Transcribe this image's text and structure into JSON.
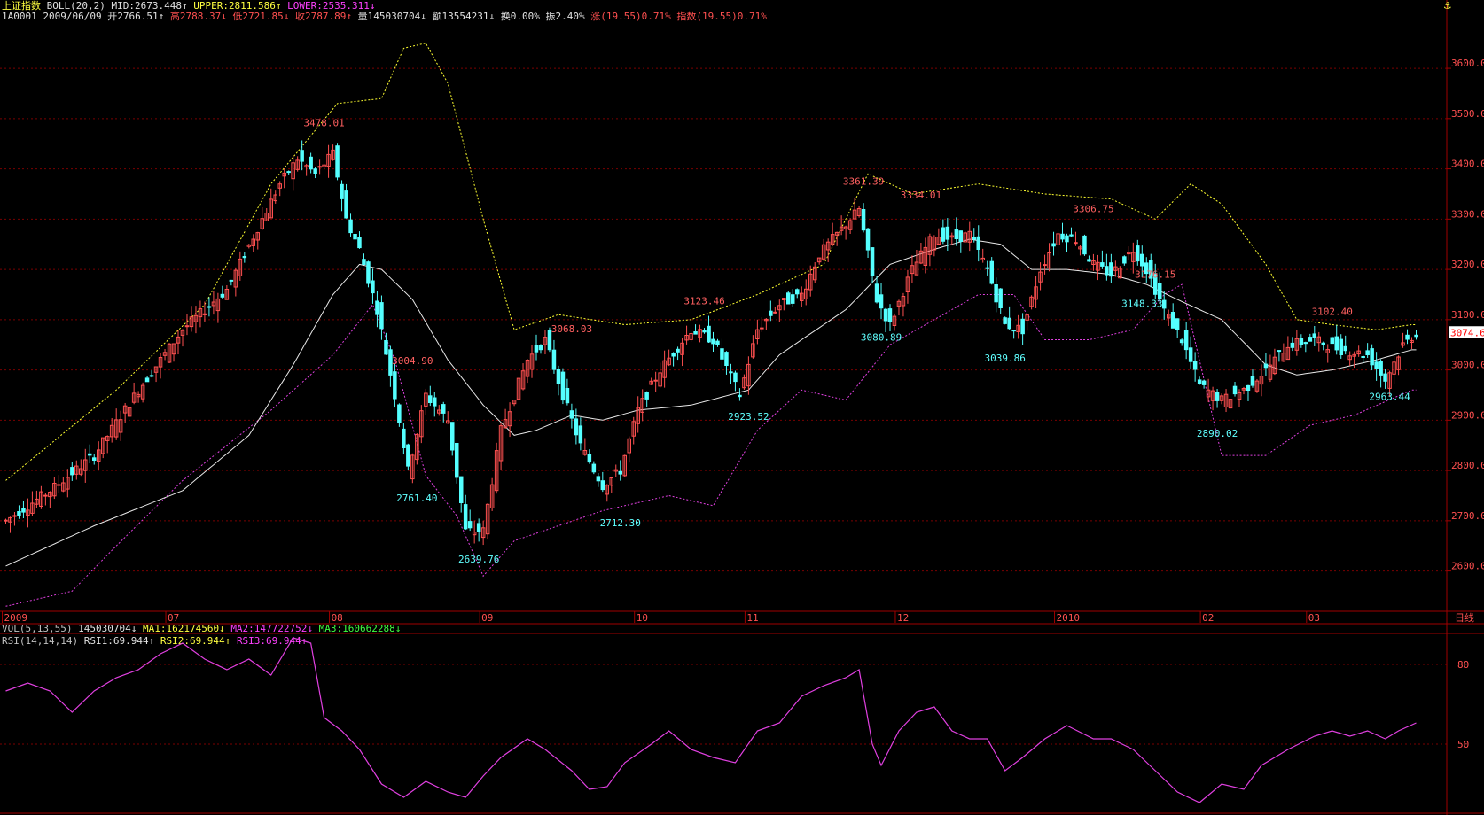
{
  "colors": {
    "background": "#000000",
    "frame": "#a00000",
    "grid": "#7a0000",
    "up_candle": "#ff5050",
    "down_candle": "#54ffff",
    "mid_band": "#e8e8e8",
    "upper_band": "#ffff30",
    "lower_band": "#e040e0",
    "rsi_line": "#e040e0",
    "label_up": "#ff6060",
    "label_down": "#60ffff",
    "axis_text": "#ff5050",
    "header_white": "#e0e0e0",
    "header_yellow": "#ffff40",
    "header_magenta": "#ff40ff",
    "header_green": "#40ff40",
    "header_red": "#ff5050"
  },
  "header": {
    "line1": {
      "name": "上证指数",
      "indicator": "BOLL(20,2)",
      "mid": "MID:2673.448↑",
      "upper": "UPPER:2811.586↑",
      "lower": "LOWER:2535.311↓"
    },
    "line2": {
      "code_date": "1A0001 2009/06/09",
      "open": "开2766.51↑",
      "high": "高2788.37↓",
      "low": "低2721.85↓",
      "close": "收2787.89↑",
      "vol": "量145030704↓",
      "amount": "额13554231↓",
      "turnover": "换0.00%",
      "amplitude": "振2.40%",
      "change": "涨(19.55)0.71%",
      "index": "指数(19.55)0.71%"
    },
    "vol_line": {
      "label": "VOL(5,13,55)",
      "value": "145030704↓",
      "ma1": "MA1:162174560↓",
      "ma2": "MA2:147722752↓",
      "ma3": "MA3:160662288↓"
    },
    "rsi_line": {
      "label": "RSI(14,14,14)",
      "rsi1": "RSI1:69.944↑",
      "rsi2": "RSI2:69.944↑",
      "rsi3": "RSI3:69.944↑"
    }
  },
  "anchor_icon": "anchor-icon",
  "current_price_tag": "3074.6",
  "period_label": "日线",
  "chart_data": [
    {
      "type": "candlestick",
      "title": "上证指数 BOLL(20,2)",
      "ylim": [
        2520,
        3690
      ],
      "y_ticks": [
        "2600.0",
        "2700.0",
        "2800.0",
        "2900.0",
        "3000.0",
        "3100.0",
        "3200.0",
        "3300.0",
        "3400.0",
        "3500.0",
        "3600.0"
      ],
      "x_labels": [
        "2009",
        "07",
        "08",
        "09",
        "10",
        "11",
        "12",
        "2010",
        "02",
        "03"
      ],
      "x_label_index": [
        0,
        37,
        74,
        108,
        143,
        168,
        202,
        238,
        271,
        295
      ],
      "bar_count": 320,
      "mid_band": [
        [
          0,
          2610
        ],
        [
          20,
          2690
        ],
        [
          40,
          2760
        ],
        [
          55,
          2870
        ],
        [
          65,
          3010
        ],
        [
          74,
          3150
        ],
        [
          80,
          3210
        ],
        [
          85,
          3200
        ],
        [
          92,
          3140
        ],
        [
          100,
          3020
        ],
        [
          108,
          2930
        ],
        [
          115,
          2870
        ],
        [
          120,
          2880
        ],
        [
          128,
          2910
        ],
        [
          135,
          2900
        ],
        [
          143,
          2920
        ],
        [
          155,
          2930
        ],
        [
          168,
          2960
        ],
        [
          175,
          3030
        ],
        [
          190,
          3120
        ],
        [
          200,
          3210
        ],
        [
          210,
          3240
        ],
        [
          218,
          3260
        ],
        [
          225,
          3250
        ],
        [
          232,
          3200
        ],
        [
          240,
          3200
        ],
        [
          250,
          3190
        ],
        [
          258,
          3170
        ],
        [
          265,
          3140
        ],
        [
          275,
          3100
        ],
        [
          285,
          3010
        ],
        [
          292,
          2990
        ],
        [
          300,
          3000
        ],
        [
          310,
          3020
        ],
        [
          318,
          3040
        ]
      ],
      "upper_band": [
        [
          0,
          2780
        ],
        [
          25,
          2960
        ],
        [
          45,
          3130
        ],
        [
          60,
          3370
        ],
        [
          75,
          3530
        ],
        [
          85,
          3540
        ],
        [
          90,
          3640
        ],
        [
          95,
          3650
        ],
        [
          100,
          3570
        ],
        [
          108,
          3300
        ],
        [
          115,
          3080
        ],
        [
          125,
          3110
        ],
        [
          140,
          3090
        ],
        [
          155,
          3100
        ],
        [
          170,
          3150
        ],
        [
          185,
          3210
        ],
        [
          195,
          3390
        ],
        [
          205,
          3350
        ],
        [
          220,
          3370
        ],
        [
          235,
          3350
        ],
        [
          250,
          3340
        ],
        [
          260,
          3300
        ],
        [
          268,
          3370
        ],
        [
          275,
          3330
        ],
        [
          285,
          3210
        ],
        [
          292,
          3100
        ],
        [
          300,
          3090
        ],
        [
          310,
          3080
        ],
        [
          318,
          3090
        ]
      ],
      "lower_band": [
        [
          0,
          2530
        ],
        [
          15,
          2560
        ],
        [
          25,
          2650
        ],
        [
          40,
          2780
        ],
        [
          60,
          2920
        ],
        [
          74,
          3030
        ],
        [
          83,
          3130
        ],
        [
          88,
          3020
        ],
        [
          95,
          2790
        ],
        [
          102,
          2710
        ],
        [
          108,
          2590
        ],
        [
          115,
          2660
        ],
        [
          125,
          2690
        ],
        [
          135,
          2720
        ],
        [
          150,
          2750
        ],
        [
          160,
          2730
        ],
        [
          170,
          2880
        ],
        [
          180,
          2960
        ],
        [
          190,
          2940
        ],
        [
          200,
          3050
        ],
        [
          210,
          3100
        ],
        [
          220,
          3150
        ],
        [
          228,
          3150
        ],
        [
          235,
          3060
        ],
        [
          245,
          3060
        ],
        [
          255,
          3080
        ],
        [
          262,
          3150
        ],
        [
          266,
          3170
        ],
        [
          275,
          2830
        ],
        [
          285,
          2830
        ],
        [
          295,
          2890
        ],
        [
          305,
          2910
        ],
        [
          318,
          2960
        ]
      ],
      "price_path": [
        [
          0,
          2700
        ],
        [
          10,
          2760
        ],
        [
          20,
          2830
        ],
        [
          30,
          2960
        ],
        [
          40,
          3080
        ],
        [
          50,
          3160
        ],
        [
          58,
          3300
        ],
        [
          62,
          3370
        ],
        [
          66,
          3420
        ],
        [
          70,
          3390
        ],
        [
          74,
          3430
        ],
        [
          77,
          3300
        ],
        [
          80,
          3240
        ],
        [
          84,
          3120
        ],
        [
          88,
          2950
        ],
        [
          91,
          2800
        ],
        [
          95,
          2950
        ],
        [
          100,
          2900
        ],
        [
          104,
          2680
        ],
        [
          108,
          2680
        ],
        [
          112,
          2880
        ],
        [
          118,
          3020
        ],
        [
          122,
          3060
        ],
        [
          126,
          2950
        ],
        [
          130,
          2850
        ],
        [
          135,
          2770
        ],
        [
          139,
          2800
        ],
        [
          143,
          2920
        ],
        [
          148,
          3000
        ],
        [
          155,
          3080
        ],
        [
          160,
          3060
        ],
        [
          166,
          2950
        ],
        [
          170,
          3080
        ],
        [
          175,
          3130
        ],
        [
          180,
          3150
        ],
        [
          184,
          3230
        ],
        [
          188,
          3270
        ],
        [
          193,
          3320
        ],
        [
          197,
          3140
        ],
        [
          200,
          3090
        ],
        [
          205,
          3200
        ],
        [
          210,
          3270
        ],
        [
          214,
          3260
        ],
        [
          218,
          3270
        ],
        [
          222,
          3200
        ],
        [
          226,
          3090
        ],
        [
          230,
          3080
        ],
        [
          234,
          3200
        ],
        [
          238,
          3270
        ],
        [
          242,
          3260
        ],
        [
          246,
          3210
        ],
        [
          250,
          3190
        ],
        [
          255,
          3240
        ],
        [
          258,
          3200
        ],
        [
          262,
          3120
        ],
        [
          266,
          3060
        ],
        [
          270,
          2970
        ],
        [
          275,
          2940
        ],
        [
          280,
          2960
        ],
        [
          285,
          3000
        ],
        [
          290,
          3050
        ],
        [
          296,
          3060
        ],
        [
          302,
          3040
        ],
        [
          308,
          3030
        ],
        [
          312,
          2980
        ],
        [
          316,
          3050
        ],
        [
          319,
          3074
        ]
      ],
      "high_low_labels": [
        {
          "text": "3478.01",
          "i": 72,
          "v": 3478.01,
          "dir": "up"
        },
        {
          "text": "3004.90",
          "i": 92,
          "v": 3004.9,
          "dir": "up"
        },
        {
          "text": "2761.40",
          "i": 93,
          "v": 2761.4,
          "dir": "down"
        },
        {
          "text": "2639.76",
          "i": 107,
          "v": 2639.76,
          "dir": "down"
        },
        {
          "text": "3068.03",
          "i": 128,
          "v": 3068.03,
          "dir": "up"
        },
        {
          "text": "2712.30",
          "i": 139,
          "v": 2712.3,
          "dir": "down"
        },
        {
          "text": "3123.46",
          "i": 158,
          "v": 3123.46,
          "dir": "up"
        },
        {
          "text": "2923.52",
          "i": 168,
          "v": 2923.52,
          "dir": "down"
        },
        {
          "text": "3361.39",
          "i": 194,
          "v": 3361.39,
          "dir": "up"
        },
        {
          "text": "3080.89",
          "i": 198,
          "v": 3080.89,
          "dir": "down"
        },
        {
          "text": "3334.01",
          "i": 207,
          "v": 3334.01,
          "dir": "up"
        },
        {
          "text": "3039.86",
          "i": 226,
          "v": 3039.86,
          "dir": "down"
        },
        {
          "text": "3306.75",
          "i": 246,
          "v": 3306.75,
          "dir": "up"
        },
        {
          "text": "3176.15",
          "i": 260,
          "v": 3176.15,
          "dir": "up"
        },
        {
          "text": "3148.33",
          "i": 257,
          "v": 3148.33,
          "dir": "down"
        },
        {
          "text": "2890.02",
          "i": 274,
          "v": 2890.02,
          "dir": "down"
        },
        {
          "text": "3102.40",
          "i": 300,
          "v": 3102.4,
          "dir": "up"
        },
        {
          "text": "2963.44",
          "i": 313,
          "v": 2963.44,
          "dir": "down"
        }
      ]
    },
    {
      "type": "line",
      "title": "RSI(14,14,14)",
      "ylim": [
        25,
        90
      ],
      "y_ticks": [
        "50",
        "80"
      ],
      "series": [
        {
          "name": "RSI1",
          "values": [
            [
              0,
              70
            ],
            [
              5,
              73
            ],
            [
              10,
              70
            ],
            [
              15,
              62
            ],
            [
              20,
              70
            ],
            [
              25,
              75
            ],
            [
              30,
              78
            ],
            [
              35,
              84
            ],
            [
              40,
              88
            ],
            [
              45,
              82
            ],
            [
              50,
              78
            ],
            [
              55,
              82
            ],
            [
              60,
              76
            ],
            [
              65,
              90
            ],
            [
              69,
              88
            ],
            [
              72,
              60
            ],
            [
              76,
              55
            ],
            [
              80,
              48
            ],
            [
              85,
              35
            ],
            [
              90,
              30
            ],
            [
              95,
              36
            ],
            [
              100,
              32
            ],
            [
              104,
              30
            ],
            [
              108,
              38
            ],
            [
              112,
              45
            ],
            [
              118,
              52
            ],
            [
              122,
              48
            ],
            [
              128,
              40
            ],
            [
              132,
              33
            ],
            [
              136,
              34
            ],
            [
              140,
              43
            ],
            [
              146,
              50
            ],
            [
              150,
              55
            ],
            [
              155,
              48
            ],
            [
              160,
              45
            ],
            [
              165,
              43
            ],
            [
              170,
              55
            ],
            [
              175,
              58
            ],
            [
              180,
              68
            ],
            [
              185,
              72
            ],
            [
              190,
              75
            ],
            [
              193,
              78
            ],
            [
              196,
              50
            ],
            [
              198,
              42
            ],
            [
              202,
              55
            ],
            [
              206,
              62
            ],
            [
              210,
              64
            ],
            [
              214,
              55
            ],
            [
              218,
              52
            ],
            [
              222,
              52
            ],
            [
              226,
              40
            ],
            [
              230,
              45
            ],
            [
              235,
              52
            ],
            [
              240,
              57
            ],
            [
              246,
              52
            ],
            [
              250,
              52
            ],
            [
              255,
              48
            ],
            [
              260,
              40
            ],
            [
              265,
              32
            ],
            [
              270,
              28
            ],
            [
              275,
              35
            ],
            [
              280,
              33
            ],
            [
              284,
              42
            ],
            [
              290,
              48
            ],
            [
              296,
              53
            ],
            [
              300,
              55
            ],
            [
              304,
              53
            ],
            [
              308,
              55
            ],
            [
              312,
              52
            ],
            [
              315,
              55
            ],
            [
              319,
              58
            ]
          ]
        }
      ]
    }
  ]
}
